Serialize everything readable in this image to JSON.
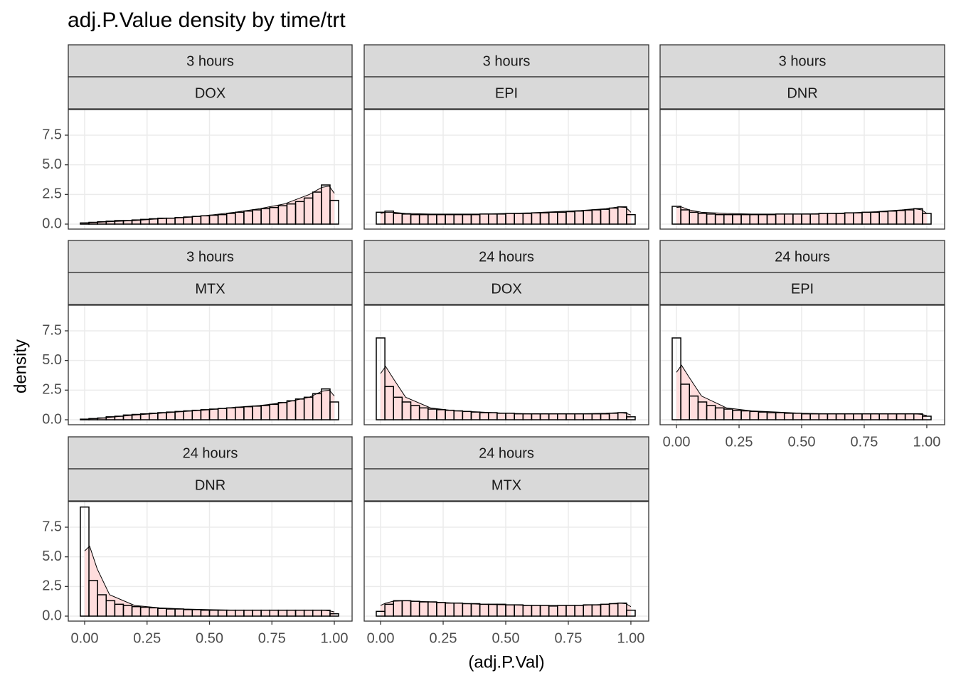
{
  "chart_data": {
    "type": "histogram",
    "title": "adj.P.Value density by time/trt",
    "xlabel": "(adj.P.Val)",
    "ylabel": "density",
    "xlim": [
      -0.0655,
      1.0712
    ],
    "ylim": [
      -0.42,
      9.66
    ],
    "xticks": [
      {
        "value": 0,
        "label": "0.00"
      },
      0.25,
      {
        "value": 0.5,
        "label": "0.50"
      },
      0.75,
      {
        "value": 1,
        "label": "1.00"
      }
    ],
    "yticks": [
      {
        "value": 0,
        "label": "0.0"
      },
      2.5,
      {
        "value": 5,
        "label": "5.0"
      },
      7.5
    ],
    "grid": true,
    "bar_edge_color": "#000000",
    "density_fill": "#ffdddd",
    "bins": [
      -0.0172,
      0.0172,
      0.0517,
      0.0862,
      0.1207,
      0.1552,
      0.1897,
      0.2241,
      0.2586,
      0.2931,
      0.3276,
      0.3621,
      0.3966,
      0.431,
      0.4655,
      0.5,
      0.5345,
      0.569,
      0.6034,
      0.6379,
      0.6724,
      0.7069,
      0.7414,
      0.7759,
      0.8103,
      0.8448,
      0.8793,
      0.9138,
      0.9483,
      0.9828,
      1.0172
    ],
    "density_x": [
      0,
      0.02,
      0.05,
      0.1,
      0.2,
      0.3,
      0.4,
      0.5,
      0.6,
      0.7,
      0.8,
      0.9,
      0.95,
      0.98,
      1.0
    ],
    "panels": [
      {
        "strips": [
          "3 hours",
          "DOX"
        ],
        "counts": [
          0.1,
          0.15,
          0.2,
          0.25,
          0.3,
          0.3,
          0.35,
          0.4,
          0.45,
          0.5,
          0.5,
          0.55,
          0.6,
          0.65,
          0.7,
          0.75,
          0.8,
          0.9,
          1.0,
          1.1,
          1.2,
          1.3,
          1.4,
          1.55,
          1.7,
          1.9,
          2.2,
          2.7,
          3.3,
          2.0
        ],
        "density": [
          0.1,
          0.12,
          0.15,
          0.2,
          0.3,
          0.45,
          0.55,
          0.75,
          1.0,
          1.3,
          1.7,
          2.5,
          3.1,
          3.2,
          2.6
        ]
      },
      {
        "strips": [
          "3 hours",
          "EPI"
        ],
        "counts": [
          1.0,
          1.1,
          0.9,
          0.85,
          0.8,
          0.8,
          0.8,
          0.8,
          0.8,
          0.8,
          0.8,
          0.8,
          0.85,
          0.85,
          0.85,
          0.9,
          0.9,
          0.9,
          0.95,
          0.95,
          1.0,
          1.0,
          1.05,
          1.1,
          1.15,
          1.2,
          1.25,
          1.35,
          1.45,
          0.8
        ],
        "density": [
          0.9,
          1.0,
          1.0,
          0.9,
          0.85,
          0.85,
          0.85,
          0.9,
          0.95,
          1.05,
          1.15,
          1.3,
          1.45,
          1.4,
          1.0
        ]
      },
      {
        "strips": [
          "3 hours",
          "DNR"
        ],
        "counts": [
          1.5,
          1.2,
          1.0,
          0.9,
          0.85,
          0.8,
          0.8,
          0.8,
          0.8,
          0.8,
          0.8,
          0.8,
          0.85,
          0.85,
          0.85,
          0.85,
          0.85,
          0.9,
          0.9,
          0.9,
          0.95,
          0.95,
          1.0,
          1.0,
          1.05,
          1.1,
          1.15,
          1.2,
          1.3,
          0.9
        ],
        "density": [
          1.4,
          1.45,
          1.2,
          1.0,
          0.9,
          0.85,
          0.85,
          0.85,
          0.9,
          0.95,
          1.05,
          1.2,
          1.3,
          1.2,
          0.9
        ]
      },
      {
        "strips": [
          "3 hours",
          "MTX"
        ],
        "counts": [
          0.05,
          0.1,
          0.15,
          0.25,
          0.3,
          0.4,
          0.45,
          0.5,
          0.55,
          0.6,
          0.65,
          0.7,
          0.75,
          0.8,
          0.85,
          0.9,
          0.95,
          1.0,
          1.05,
          1.1,
          1.15,
          1.2,
          1.3,
          1.45,
          1.6,
          1.75,
          1.9,
          2.2,
          2.6,
          1.5
        ],
        "density": [
          0.05,
          0.07,
          0.1,
          0.2,
          0.4,
          0.55,
          0.7,
          0.85,
          1.05,
          1.2,
          1.45,
          1.9,
          2.4,
          2.5,
          2.0
        ]
      },
      {
        "strips": [
          "24 hours",
          "DOX"
        ],
        "counts": [
          6.9,
          2.8,
          1.9,
          1.5,
          1.2,
          1.0,
          0.9,
          0.85,
          0.8,
          0.75,
          0.7,
          0.65,
          0.6,
          0.6,
          0.55,
          0.55,
          0.5,
          0.5,
          0.5,
          0.5,
          0.5,
          0.5,
          0.5,
          0.5,
          0.5,
          0.5,
          0.5,
          0.55,
          0.6,
          0.25
        ],
        "density": [
          3.9,
          4.5,
          3.5,
          1.9,
          1.0,
          0.75,
          0.65,
          0.55,
          0.5,
          0.5,
          0.5,
          0.55,
          0.6,
          0.55,
          0.4
        ]
      },
      {
        "strips": [
          "24 hours",
          "EPI"
        ],
        "counts": [
          6.9,
          3.0,
          2.0,
          1.5,
          1.2,
          1.0,
          0.9,
          0.8,
          0.75,
          0.7,
          0.65,
          0.6,
          0.6,
          0.55,
          0.55,
          0.5,
          0.5,
          0.5,
          0.5,
          0.5,
          0.5,
          0.5,
          0.5,
          0.5,
          0.5,
          0.5,
          0.5,
          0.5,
          0.5,
          0.3
        ],
        "density": [
          4.0,
          4.6,
          3.6,
          2.0,
          1.0,
          0.75,
          0.65,
          0.55,
          0.5,
          0.5,
          0.5,
          0.5,
          0.5,
          0.45,
          0.35
        ]
      },
      {
        "strips": [
          "24 hours",
          "DNR"
        ],
        "counts": [
          9.2,
          3.0,
          1.8,
          1.3,
          1.0,
          0.9,
          0.8,
          0.75,
          0.7,
          0.65,
          0.6,
          0.6,
          0.55,
          0.55,
          0.5,
          0.5,
          0.5,
          0.5,
          0.5,
          0.5,
          0.5,
          0.5,
          0.5,
          0.5,
          0.5,
          0.5,
          0.5,
          0.5,
          0.5,
          0.2
        ],
        "density": [
          5.5,
          5.9,
          4.0,
          1.8,
          0.9,
          0.7,
          0.6,
          0.55,
          0.5,
          0.5,
          0.5,
          0.5,
          0.5,
          0.45,
          0.35
        ]
      },
      {
        "strips": [
          "24 hours",
          "MTX"
        ],
        "counts": [
          0.4,
          1.0,
          1.3,
          1.3,
          1.25,
          1.2,
          1.2,
          1.15,
          1.1,
          1.1,
          1.05,
          1.05,
          1.0,
          1.0,
          1.0,
          0.95,
          0.95,
          0.9,
          0.9,
          0.9,
          0.85,
          0.9,
          0.9,
          0.9,
          0.95,
          0.95,
          1.0,
          1.05,
          1.1,
          0.5
        ],
        "density": [
          0.9,
          1.1,
          1.25,
          1.3,
          1.2,
          1.1,
          1.0,
          0.95,
          0.9,
          0.9,
          0.9,
          1.0,
          1.1,
          1.05,
          0.8
        ]
      }
    ]
  }
}
